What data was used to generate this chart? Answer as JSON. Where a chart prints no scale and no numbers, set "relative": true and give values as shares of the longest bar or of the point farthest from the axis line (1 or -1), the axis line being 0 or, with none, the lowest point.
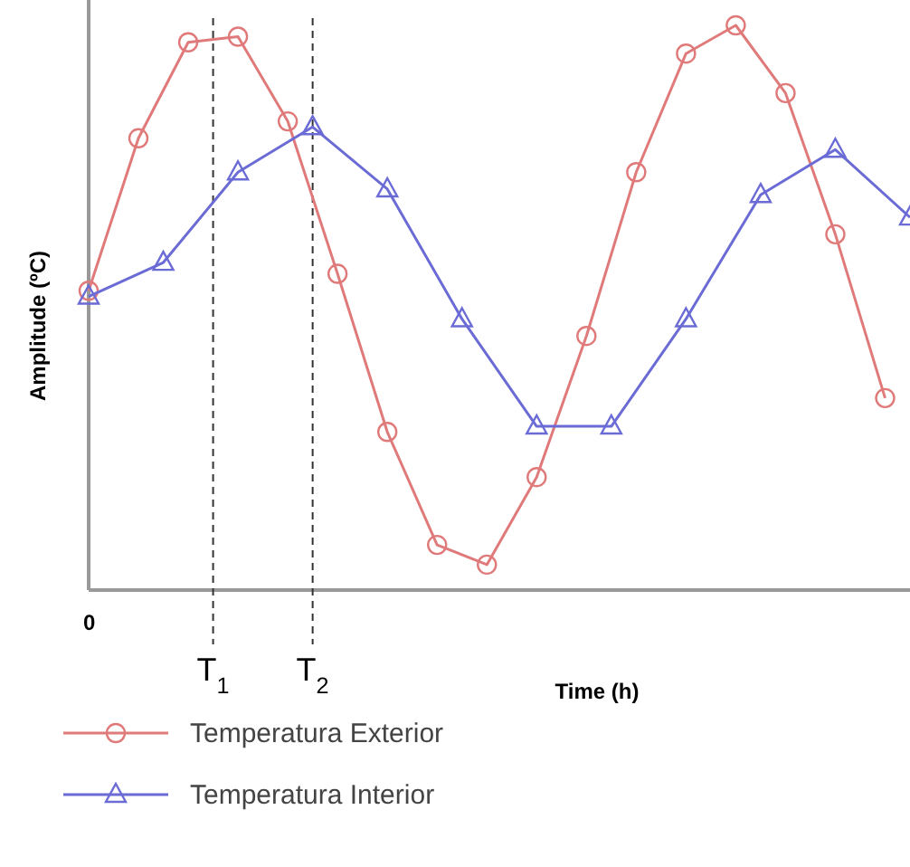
{
  "chart_data": {
    "type": "line",
    "xlabel": "Time (h)",
    "ylabel": "Amplitude (ºC)",
    "relative": true,
    "annotations": [
      "0"
    ],
    "categories": [
      null,
      null,
      null,
      null,
      null,
      "T$_{1}$",
      null,
      null,
      null,
      "T$_{2}$",
      null,
      null,
      null,
      null,
      null,
      null,
      null,
      null,
      null,
      null,
      null,
      null,
      null,
      null,
      null,
      null,
      null,
      null,
      null,
      null,
      null,
      null,
      null,
      null
    ],
    "series": [
      {
        "name": "Temperatura Exterior",
        "color": "#e07a7a",
        "marker": "circle",
        "values": [
          0.53,
          null,
          0.8,
          null,
          0.97,
          null,
          0.98,
          null,
          0.83,
          null,
          0.56,
          null,
          0.28,
          null,
          0.08,
          null,
          0.045,
          null,
          0.2,
          null,
          0.45,
          null,
          0.74,
          null,
          0.95,
          null,
          1.0,
          null,
          0.88,
          null,
          0.63,
          null,
          0.34,
          null
        ]
      },
      {
        "name": "Temperatura Interior",
        "color": "#6b6bd6",
        "marker": "triangle",
        "values": [
          0.52,
          null,
          null,
          0.58,
          null,
          null,
          0.74,
          null,
          null,
          0.82,
          null,
          null,
          0.71,
          null,
          null,
          0.48,
          null,
          null,
          0.29,
          null,
          null,
          0.29,
          null,
          null,
          0.48,
          null,
          null,
          0.7,
          null,
          null,
          0.78,
          null,
          null,
          0.66
        ]
      }
    ],
    "ref_lines": [
      {
        "axis": "x",
        "value": "T$_{1}$",
        "line_style": "dashed"
      },
      {
        "axis": "x",
        "value": "T$_{2}$",
        "line_style": "dashed"
      }
    ],
    "legend": "bottom"
  }
}
